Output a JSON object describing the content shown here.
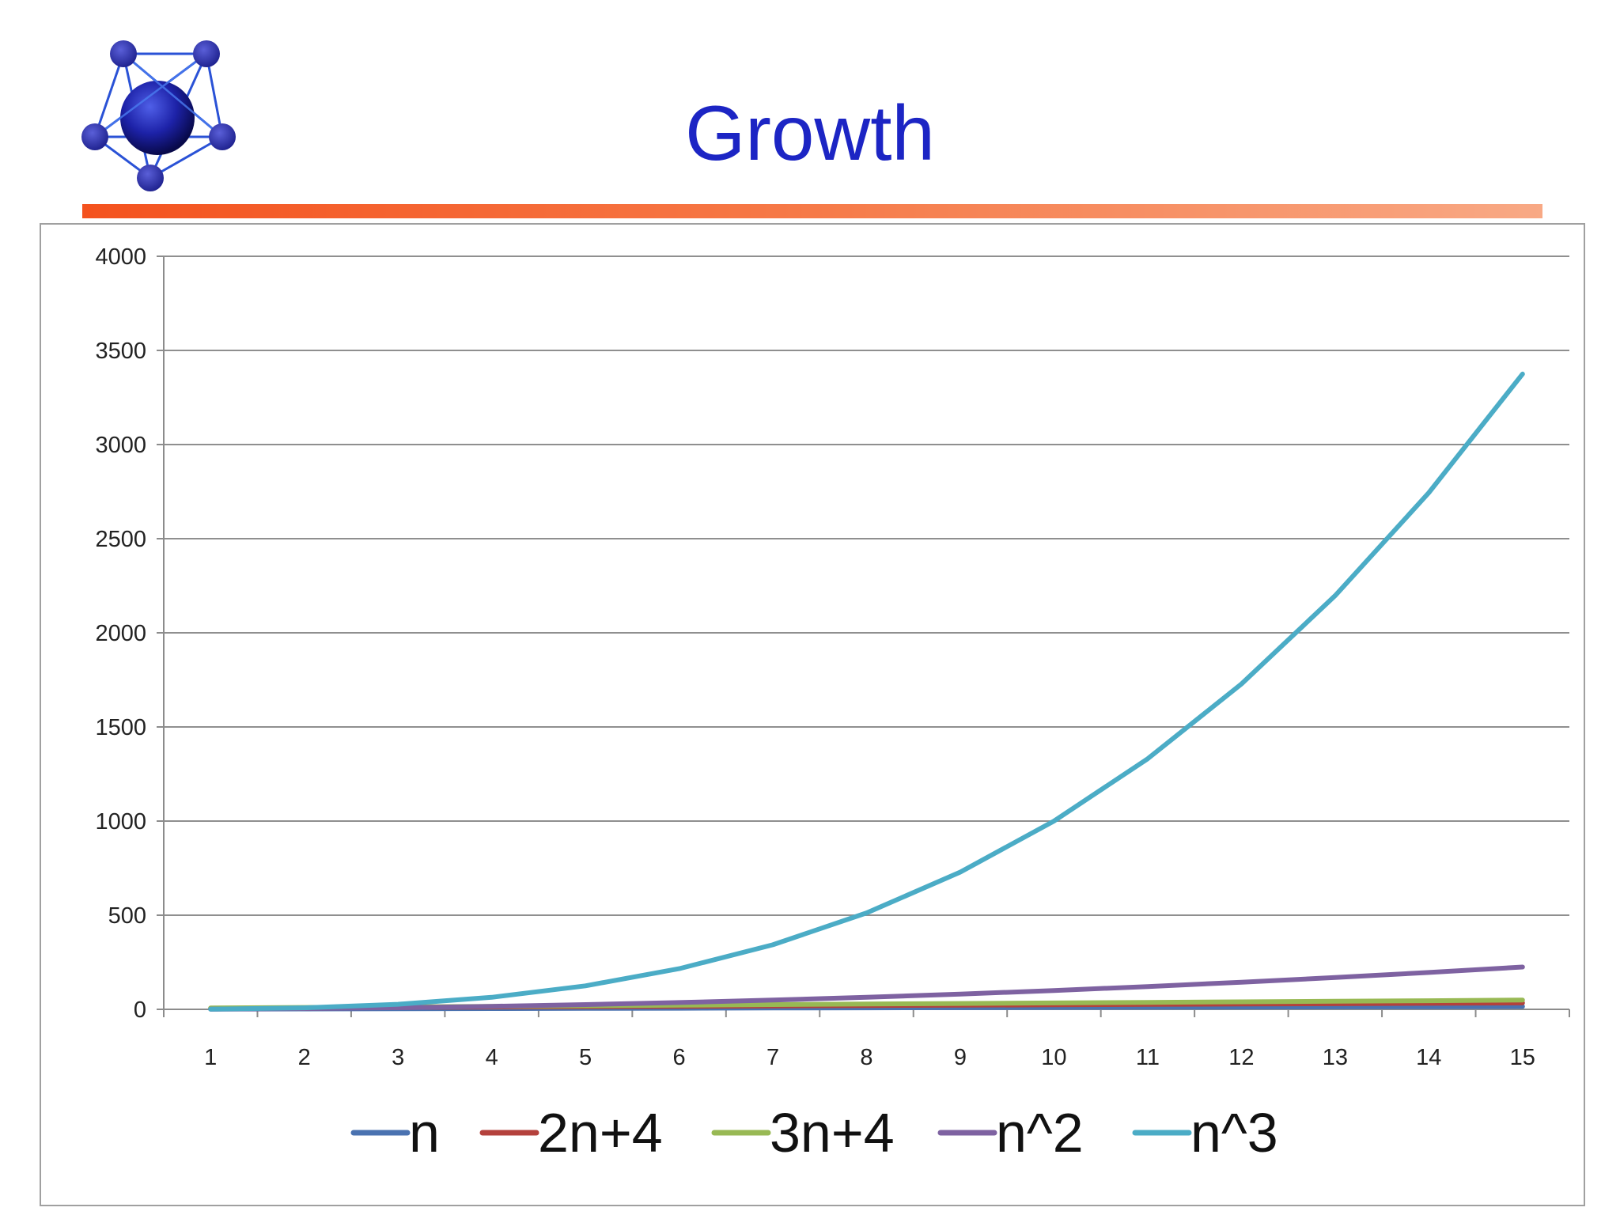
{
  "slide": {
    "title": "Growth",
    "logo_icon": "molecule-network-icon",
    "title_color": "#1c25c4",
    "rule_colors": [
      "#f4521e",
      "#f8a985"
    ]
  },
  "chart_data": {
    "type": "line",
    "title": "",
    "xlabel": "",
    "ylabel": "",
    "x": [
      1,
      2,
      3,
      4,
      5,
      6,
      7,
      8,
      9,
      10,
      11,
      12,
      13,
      14,
      15
    ],
    "ylim": [
      0,
      4000
    ],
    "yticks": [
      0,
      500,
      1000,
      1500,
      2000,
      2500,
      3000,
      3500,
      4000
    ],
    "grid": "horizontal",
    "legend_position": "bottom",
    "series": [
      {
        "name": "n",
        "color": "#4a72b0",
        "values": [
          1,
          2,
          3,
          4,
          5,
          6,
          7,
          8,
          9,
          10,
          11,
          12,
          13,
          14,
          15
        ]
      },
      {
        "name": "2n+4",
        "color": "#b4413c",
        "values": [
          6,
          8,
          10,
          12,
          14,
          16,
          18,
          20,
          22,
          24,
          26,
          28,
          30,
          32,
          34
        ]
      },
      {
        "name": "3n+4",
        "color": "#98b954",
        "values": [
          7,
          10,
          13,
          16,
          19,
          22,
          25,
          28,
          31,
          34,
          37,
          40,
          43,
          46,
          49
        ]
      },
      {
        "name": "n^2",
        "color": "#7e62a1",
        "values": [
          1,
          4,
          9,
          16,
          25,
          36,
          49,
          64,
          81,
          100,
          121,
          144,
          169,
          196,
          225
        ]
      },
      {
        "name": "n^3",
        "color": "#4bacc6",
        "values": [
          1,
          8,
          27,
          64,
          125,
          216,
          343,
          512,
          729,
          1000,
          1331,
          1728,
          2197,
          2744,
          3375
        ]
      }
    ]
  }
}
